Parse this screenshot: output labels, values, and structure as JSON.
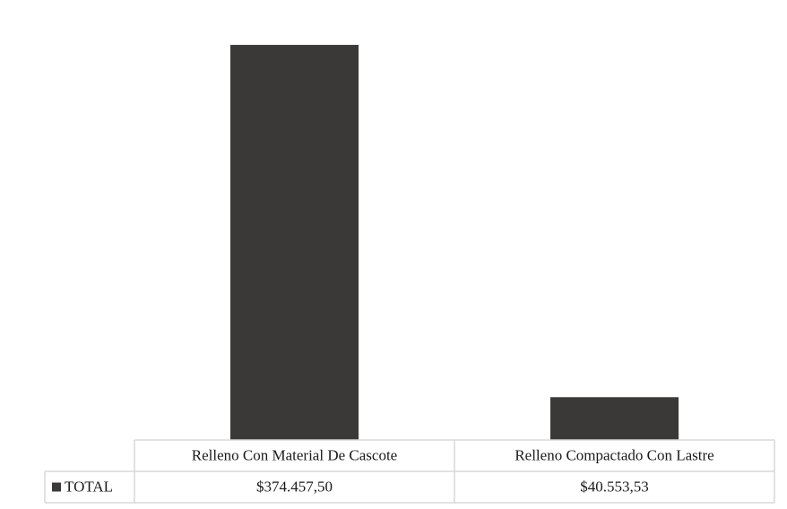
{
  "chart_data": {
    "type": "bar",
    "categories": [
      "Relleno Con Material De Cascote",
      "Relleno Compactado Con Lastre"
    ],
    "series": [
      {
        "name": "TOTAL",
        "values": [
          374457.5,
          40553.53
        ],
        "labels": [
          "$374.457,50",
          "$40.553,53"
        ],
        "color": "#3a3938"
      }
    ],
    "title": "",
    "xlabel": "",
    "ylabel": "",
    "ylim": [
      0,
      400000
    ],
    "grid": false,
    "legend": "data-table"
  }
}
